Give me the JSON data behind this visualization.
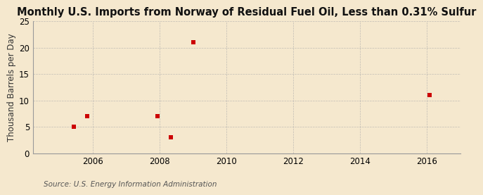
{
  "title": "Monthly U.S. Imports from Norway of Residual Fuel Oil, Less than 0.31% Sulfur",
  "ylabel": "Thousand Barrels per Day",
  "source": "Source: U.S. Energy Information Administration",
  "background_color": "#f5e8ce",
  "plot_bg_color": "#f5e8ce",
  "data_x": [
    2005.42,
    2005.83,
    2007.92,
    2008.33,
    2009.0,
    2016.08
  ],
  "data_y": [
    5,
    7,
    7,
    3,
    21,
    11
  ],
  "marker_color": "#cc0000",
  "marker_size": 4,
  "xlim": [
    2004.2,
    2017.0
  ],
  "ylim": [
    0,
    25
  ],
  "xticks": [
    2006,
    2008,
    2010,
    2012,
    2014,
    2016
  ],
  "yticks": [
    0,
    5,
    10,
    15,
    20,
    25
  ],
  "grid_color": "#aaaaaa",
  "title_fontsize": 10.5,
  "axis_fontsize": 8.5,
  "source_fontsize": 7.5
}
